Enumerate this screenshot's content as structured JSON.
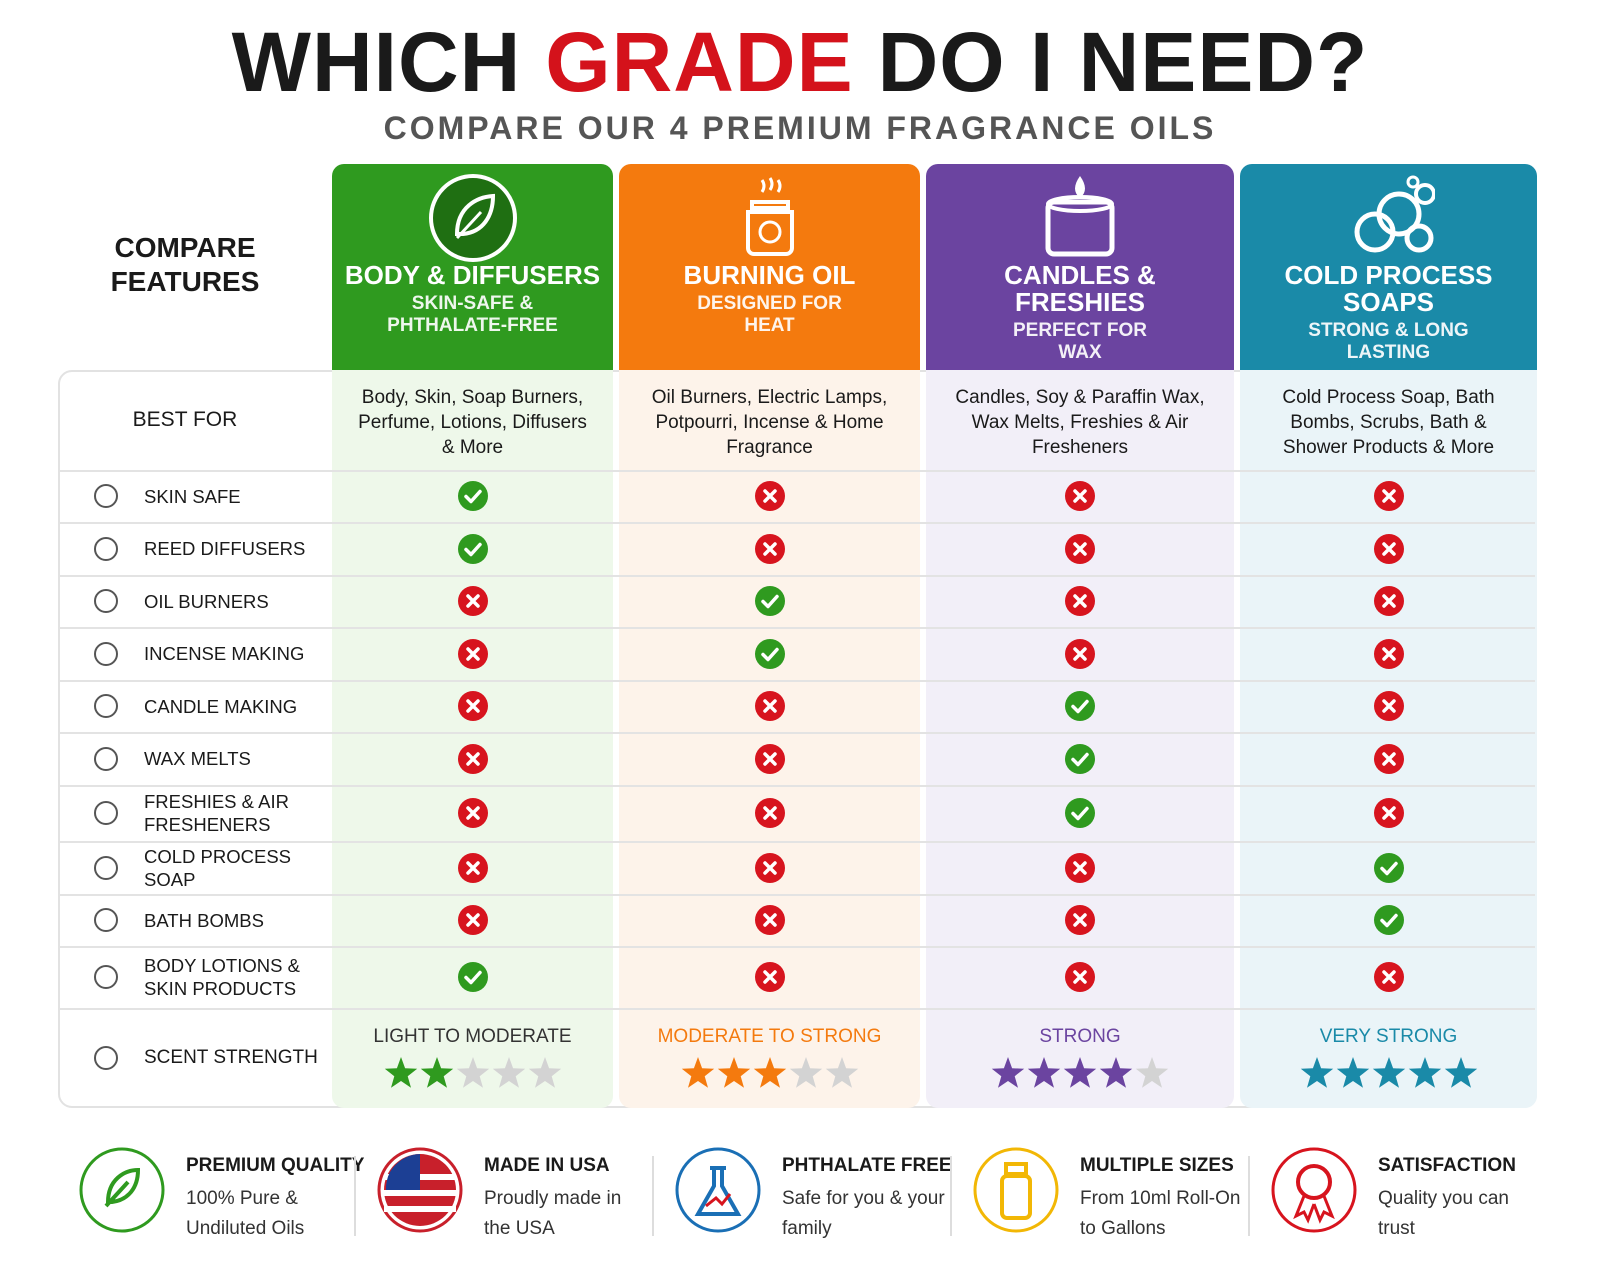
{
  "header": {
    "title_parts": [
      "WHICH",
      "GRADE",
      "DO I NEED?"
    ],
    "subtitle": "COMPARE OUR 4 PREMIUM FRAGRANCE OILS"
  },
  "table": {
    "corner": [
      "COMPARE",
      "FEATURES"
    ],
    "best_for_label": "BEST FOR",
    "scent_label": "SCENT STRENGTH",
    "star_slots": 5,
    "columns": [
      {
        "name": "BODY & DIFFUSERS",
        "tagline": "SKIN-SAFE & PHTHALATE-FREE",
        "color": "#2f9a1f",
        "tint": "#eef8ea",
        "best_for": "Body, Skin, Soap Burners, Perfume, Lotions, Diffusers & More",
        "scent_text": "LIGHT TO MODERATE",
        "scent_color": "#333333",
        "scent_stars": 2
      },
      {
        "name": "BURNING OIL",
        "tagline": "DESIGNED FOR HEAT",
        "color": "#f47a0e",
        "tint": "#fdf3ea",
        "best_for": "Oil Burners, Electric Lamps, Potpourri, Incense & Home Fragrance",
        "scent_text": "MODERATE TO STRONG",
        "scent_color": "#f47a0e",
        "scent_stars": 3
      },
      {
        "name": "CANDLES & FRESHIES",
        "tagline": "PERFECT FOR WAX",
        "color": "#6b44a0",
        "tint": "#f2eff8",
        "best_for": "Candles, Soy & Paraffin Wax, Wax Melts, Freshies & Air Fresheners",
        "scent_text": "STRONG",
        "scent_color": "#6b44a0",
        "scent_stars": 4
      },
      {
        "name": "COLD PROCESS SOAPS",
        "tagline": "STRONG & LONG LASTING",
        "color": "#1a8aa8",
        "tint": "#eaf4f8",
        "best_for": "Cold Process Soap, Bath Bombs, Scrubs, Bath & Shower Products & More",
        "scent_text": "VERY STRONG",
        "scent_color": "#1a8aa8",
        "scent_stars": 5
      }
    ],
    "features": [
      {
        "label": "SKIN SAFE",
        "values": [
          true,
          false,
          false,
          false
        ]
      },
      {
        "label": "REED DIFFUSERS",
        "values": [
          true,
          false,
          false,
          false
        ]
      },
      {
        "label": "OIL BURNERS",
        "values": [
          false,
          true,
          false,
          false
        ]
      },
      {
        "label": "INCENSE MAKING",
        "values": [
          false,
          true,
          false,
          false
        ]
      },
      {
        "label": "CANDLE MAKING",
        "values": [
          false,
          false,
          true,
          false
        ]
      },
      {
        "label": "WAX MELTS",
        "values": [
          false,
          false,
          true,
          false
        ]
      },
      {
        "label": "FRESHIES & AIR FRESHENERS",
        "values": [
          false,
          false,
          true,
          false
        ]
      },
      {
        "label": "COLD PROCESS SOAP",
        "values": [
          false,
          false,
          false,
          true
        ]
      },
      {
        "label": "BATH BOMBS",
        "values": [
          false,
          false,
          false,
          true
        ]
      },
      {
        "label": "BODY LOTIONS & SKIN PRODUCTS",
        "values": [
          true,
          false,
          false,
          false
        ]
      }
    ]
  },
  "footer": [
    {
      "title": "PREMIUM QUALITY",
      "text": "100% Pure & Undiluted Oils"
    },
    {
      "title": "MADE IN USA",
      "text": "Proudly made in the USA"
    },
    {
      "title": "PHTHALATE FREE",
      "text": "Safe for you & your family"
    },
    {
      "title": "MULTIPLE SIZES",
      "text": "From 10ml Roll-On to Gallons"
    },
    {
      "title": "SATISFACTION",
      "text": "Quality you can trust"
    }
  ]
}
